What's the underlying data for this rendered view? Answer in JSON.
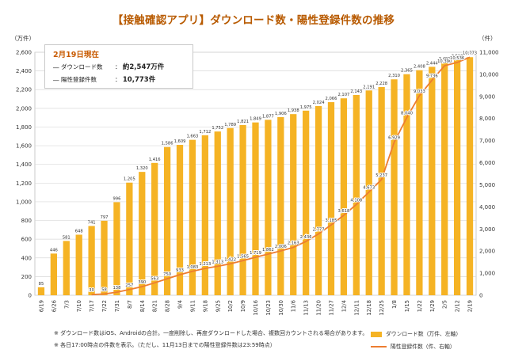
{
  "chart_data": {
    "type": "bar",
    "title": "【接触確認アプリ】ダウンロード数・陽性登録件数の推移",
    "ylabel_left_unit": "（万件）",
    "ylabel_right_unit": "（件）",
    "categories": [
      "6/19",
      "6/26",
      "7/3",
      "7/10",
      "7/17",
      "7/22",
      "7/31",
      "8/7",
      "8/14",
      "8/21",
      "8/28",
      "9/4",
      "9/11",
      "9/18",
      "9/25",
      "10/2",
      "10/9",
      "10/16",
      "10/23",
      "10/30",
      "11/6",
      "11/13",
      "11/20",
      "11/27",
      "12/4",
      "12/11",
      "12/18",
      "12/25",
      "1/8",
      "1/15",
      "1/22",
      "1/29",
      "2/5",
      "2/12",
      "2/19"
    ],
    "y_left_lim": [
      0,
      2600
    ],
    "y_left_ticks": [
      "0",
      "200",
      "400",
      "600",
      "800",
      "1,000",
      "1,200",
      "1,400",
      "1,600",
      "1,800",
      "2,000",
      "2,200",
      "2,400",
      "2,600"
    ],
    "y_right_lim": [
      0,
      11000
    ],
    "y_right_ticks": [
      "0",
      "1,000",
      "2,000",
      "3,000",
      "4,000",
      "5,000",
      "6,000",
      "7,000",
      "8,000",
      "9,000",
      "10,000",
      "11,000"
    ],
    "series": [
      {
        "name": "ダウンロード数（万件、左軸）",
        "kind": "bar",
        "color": "#f5b324",
        "axis": "left",
        "values": [
          85,
          446,
          581,
          648,
          741,
          797,
          996,
          1205,
          1320,
          1416,
          1586,
          1609,
          1663,
          1712,
          1752,
          1789,
          1821,
          1849,
          1877,
          1906,
          1938,
          1975,
          2024,
          2066,
          2107,
          2143,
          2191,
          2228,
          2310,
          2365,
          2408,
          2444,
          2491,
          2519,
          2547
        ],
        "labels": [
          "85",
          "446",
          "581",
          "648",
          "741",
          "797",
          "996",
          "1,205",
          "1,320",
          "1,416",
          "1,586",
          "1,609",
          "1,663",
          "1,712",
          "1,752",
          "1,789",
          "1,821",
          "1,849",
          "1,877",
          "1,906",
          "1,938",
          "1,975",
          "2,024",
          "2,066",
          "2,107",
          "2,143",
          "2,191",
          "2,228",
          "2,310",
          "2,365",
          "2,408",
          "2,444",
          "2,491",
          "2,519",
          "2,547"
        ]
      },
      {
        "name": "陽性登録件数（件、右軸）",
        "kind": "line",
        "color": "#ed7d31",
        "axis": "right",
        "values": [
          null,
          null,
          null,
          null,
          30,
          58,
          138,
          257,
          390,
          563,
          750,
          933,
          1083,
          1213,
          1313,
          1422,
          1565,
          1719,
          1862,
          2006,
          2163,
          2436,
          2777,
          3185,
          3618,
          4108,
          4673,
          5237,
          6929,
          8040,
          9033,
          9736,
          10390,
          10536,
          10773
        ],
        "labels": [
          "",
          "",
          "",
          "",
          "30",
          "58",
          "138",
          "257",
          "390",
          "563",
          "750",
          "933",
          "1,083",
          "1,213",
          "1,313",
          "1,422",
          "1,565",
          "1,719",
          "1,862",
          "2,006",
          "2,163",
          "2,436",
          "2,777",
          "3,185",
          "3,618",
          "4,108",
          "4,673",
          "5,237",
          "6,929",
          "8,040",
          "9,033",
          "9,736",
          "10,390",
          "10,536",
          "10,773"
        ]
      }
    ],
    "legend": [
      "ダウンロード数（万件、左軸）",
      "陽性登録件数（件、右軸）"
    ],
    "legend_position": "bottom-right"
  },
  "infobox": {
    "date": "2月19日現在",
    "download_label": "ダウンロード数",
    "download_value": "約2,547万件",
    "positive_label": "陽性登録件数",
    "positive_value": "10,773件"
  },
  "notes": [
    "※ ダウンロード数はiOS、Androidの合計。一度削除し、再度ダウンロードした場合、複数回カウントされる場合があります。",
    "※ 各日17:00時点の件数を表示。（ただし、11月13日までの陽性登録件数は23:59時点）"
  ],
  "colors": {
    "bar": "#f5b324",
    "line": "#ed7d31",
    "title": "#b85a00",
    "date": "#c85a00"
  }
}
